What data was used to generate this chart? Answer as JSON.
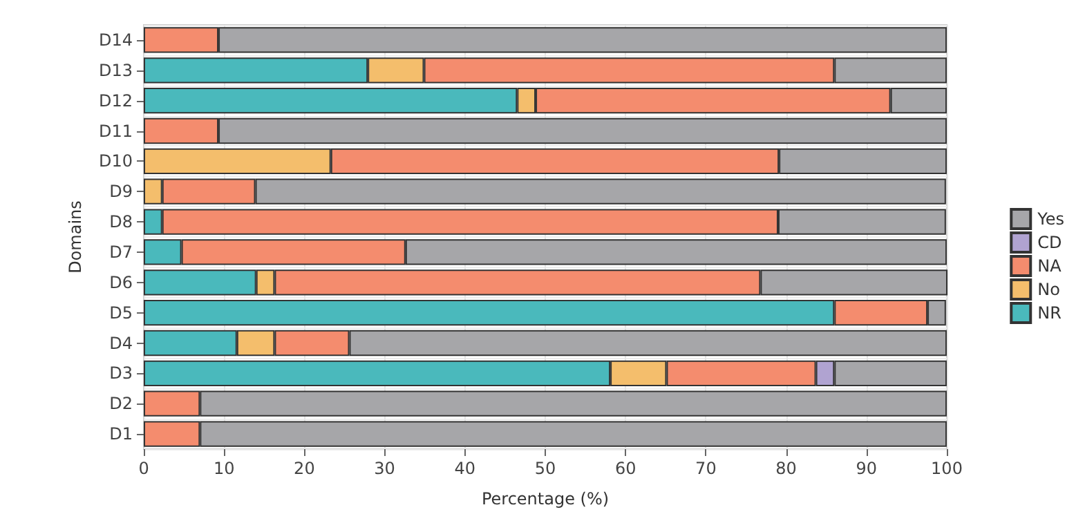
{
  "chart_data": {
    "type": "bar",
    "orientation": "horizontal",
    "stacked": true,
    "xlabel": "Percentage (%)",
    "ylabel": "Domains",
    "categories": [
      "D14",
      "D13",
      "D12",
      "D11",
      "D10",
      "D9",
      "D8",
      "D7",
      "D6",
      "D5",
      "D4",
      "D3",
      "D2",
      "D1"
    ],
    "series": [
      {
        "name": "NR",
        "color": "#4ab9bc",
        "values": [
          null,
          27.9,
          46.5,
          null,
          null,
          null,
          2.3,
          4.7,
          14,
          86,
          11.6,
          58.1,
          null,
          null
        ]
      },
      {
        "name": "No",
        "color": "#f4be6c",
        "values": [
          null,
          7,
          2.3,
          null,
          23.3,
          2.3,
          null,
          null,
          2.3,
          null,
          4.7,
          7,
          null,
          null
        ]
      },
      {
        "name": "NA",
        "color": "#f48c6e",
        "values": [
          9.3,
          51.1,
          44.2,
          9.3,
          55.8,
          11.6,
          76.7,
          27.9,
          60.5,
          11.6,
          9.3,
          18.6,
          7,
          7
        ]
      },
      {
        "name": "CD",
        "color": "#b0a3d1",
        "values": [
          null,
          null,
          null,
          null,
          null,
          null,
          null,
          null,
          null,
          null,
          null,
          2.3,
          null,
          null
        ]
      },
      {
        "name": "Yes",
        "color": "#a6a6a9",
        "values": [
          90.7,
          14,
          7,
          90.7,
          20.9,
          86,
          20.9,
          67.4,
          23.3,
          2.3,
          74.4,
          14,
          93,
          93
        ]
      }
    ],
    "xlim": [
      0,
      100
    ],
    "xticks": [
      0,
      10,
      20,
      30,
      40,
      50,
      60,
      70,
      80,
      90,
      100
    ],
    "grid": true,
    "legend": "right"
  }
}
